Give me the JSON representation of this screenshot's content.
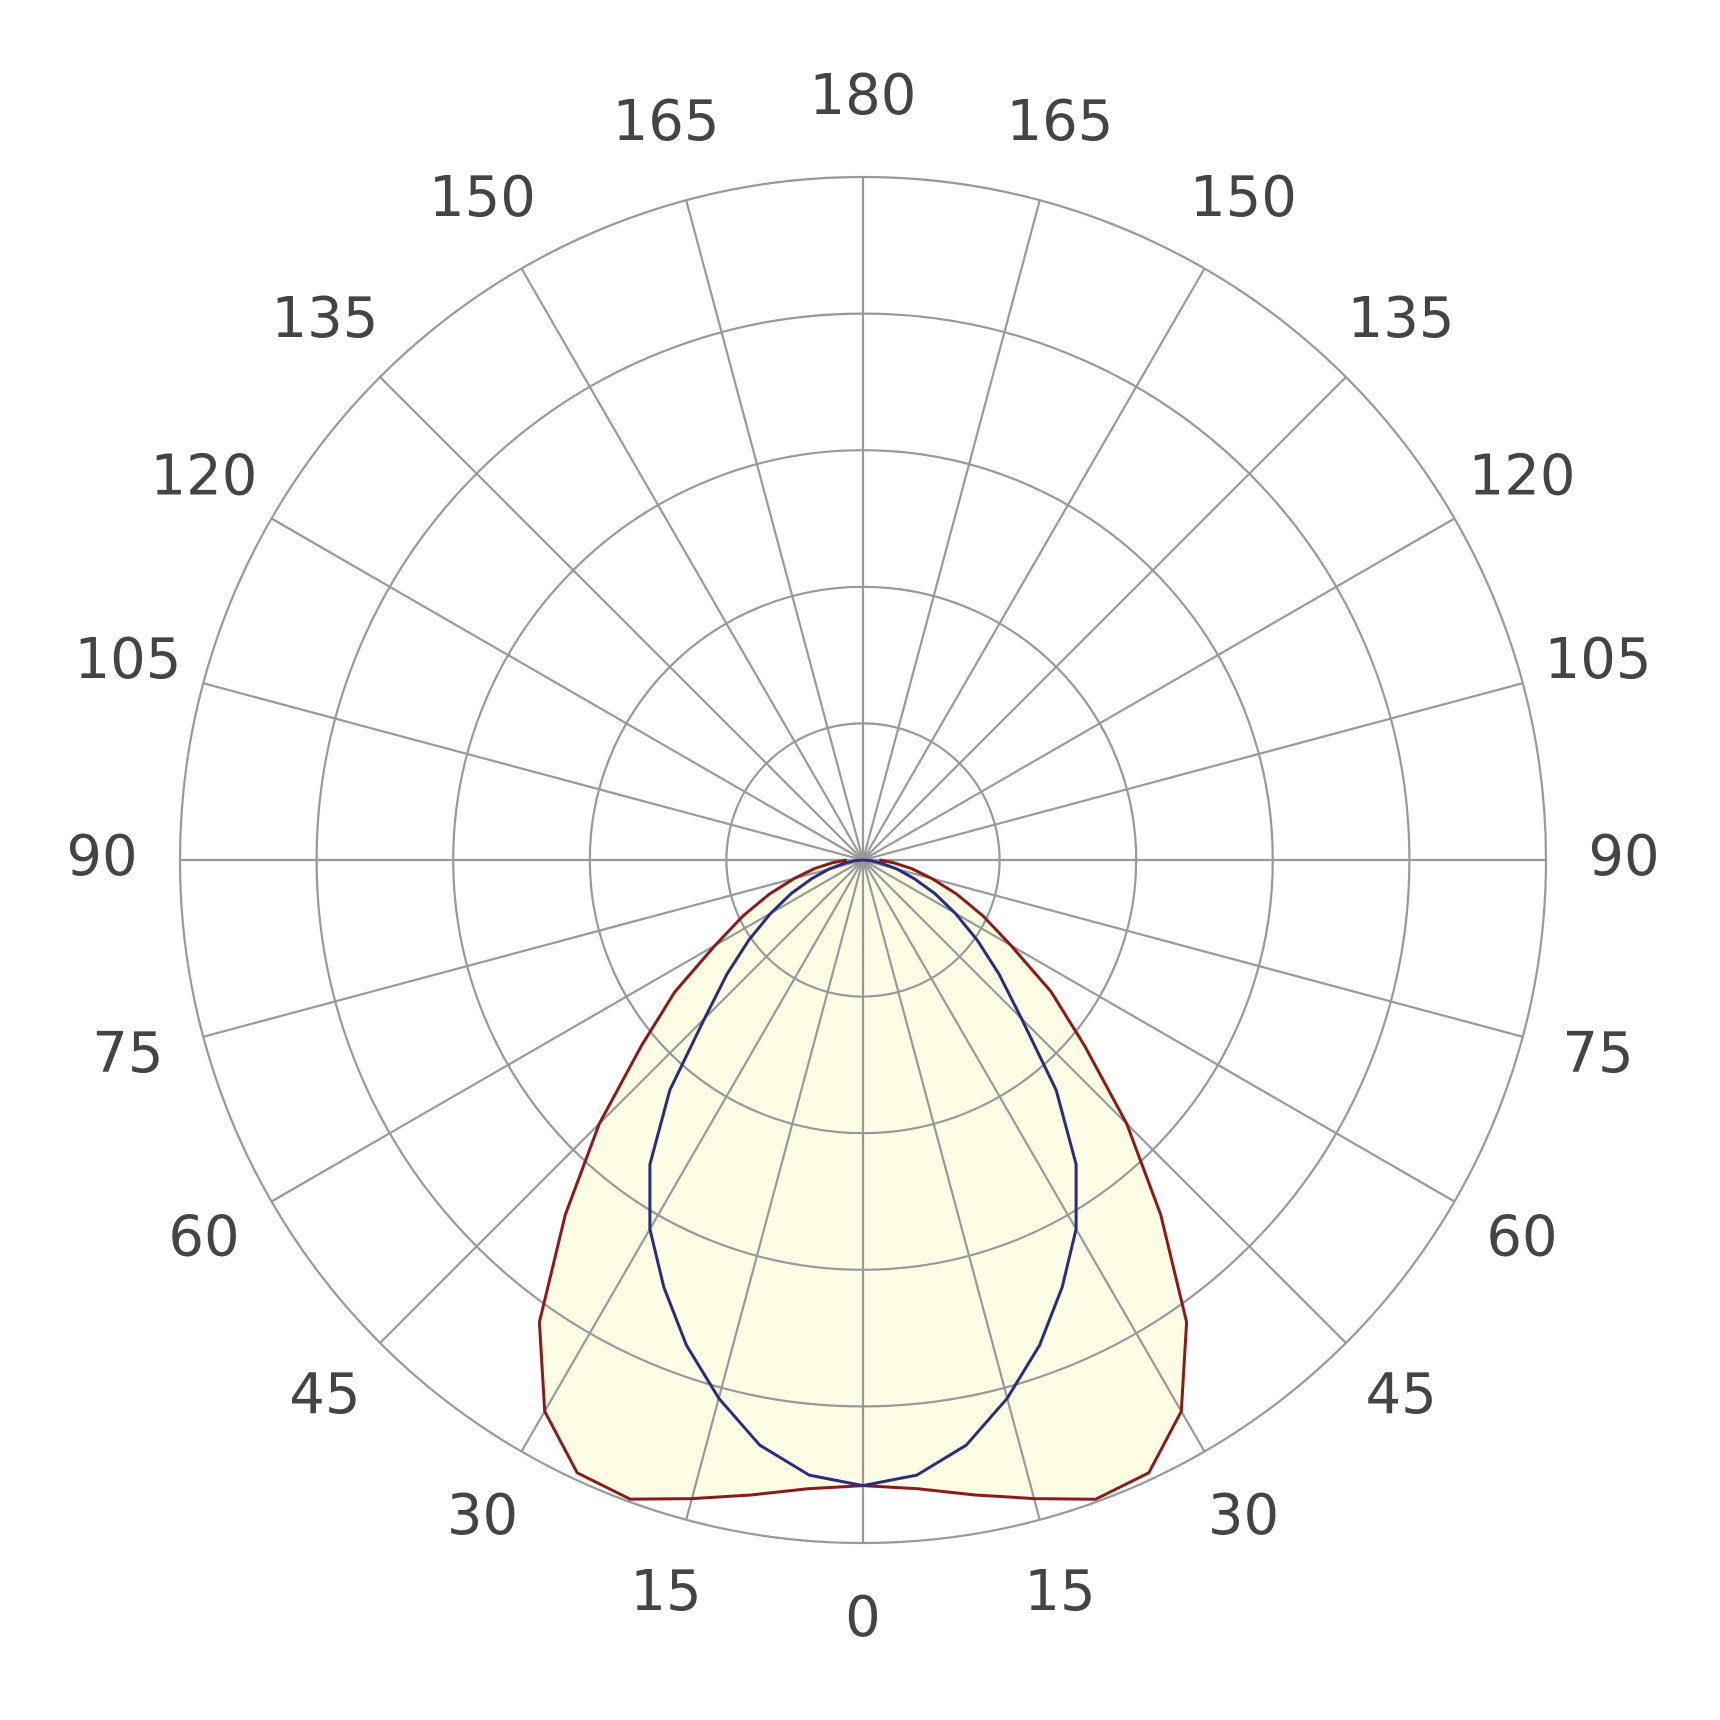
{
  "chart_data": {
    "type": "polar",
    "theta_ticks": [
      0,
      15,
      30,
      45,
      60,
      75,
      90,
      105,
      120,
      135,
      150,
      165,
      180
    ],
    "rlim": [
      0,
      5
    ],
    "rticks": [
      1,
      2,
      3,
      4,
      5
    ],
    "grid": true,
    "fill": "#fdfde6",
    "theta": [
      0,
      5,
      10,
      15,
      20,
      25,
      30,
      35,
      40,
      45,
      50,
      55,
      60,
      65,
      70,
      75,
      80,
      85,
      90
    ],
    "series": [
      {
        "color": "#8b1a1a",
        "values": [
          4.58,
          4.62,
          4.72,
          4.84,
          4.98,
          4.95,
          4.66,
          4.13,
          3.39,
          2.73,
          2.12,
          1.68,
          1.25,
          0.97,
          0.73,
          0.52,
          0.36,
          0.22,
          0.12
        ]
      },
      {
        "color": "#2b2b82",
        "values": [
          4.58,
          4.52,
          4.35,
          4.08,
          3.78,
          3.45,
          3.12,
          2.72,
          2.2,
          1.64,
          1.3,
          1.02,
          0.78,
          0.58,
          0.4,
          0.26,
          0.14,
          0.06,
          0
        ]
      }
    ]
  }
}
